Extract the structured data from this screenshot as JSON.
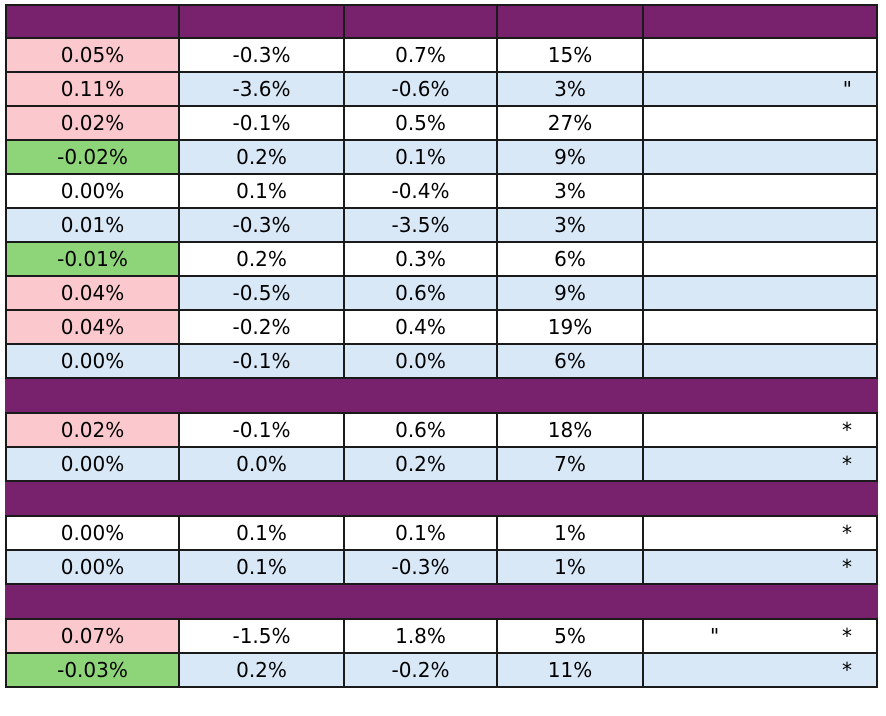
{
  "sheet": {
    "header": [
      "",
      "",
      "",
      "",
      ""
    ],
    "rows": [
      {
        "kind": "data",
        "shade": "white",
        "c0": "0.05%",
        "c0tone": "pos",
        "c1": "-0.3%",
        "c2": "0.7%",
        "c3": "15%",
        "c4q": "",
        "c4s": ""
      },
      {
        "kind": "data",
        "shade": "blue",
        "c0": "0.11%",
        "c0tone": "pos",
        "c1": "-3.6%",
        "c2": "-0.6%",
        "c3": "3%",
        "c4q": "",
        "c4s": "\""
      },
      {
        "kind": "data",
        "shade": "white",
        "c0": "0.02%",
        "c0tone": "pos",
        "c1": "-0.1%",
        "c2": "0.5%",
        "c3": "27%",
        "c4q": "",
        "c4s": ""
      },
      {
        "kind": "data",
        "shade": "blue",
        "c0": "-0.02%",
        "c0tone": "neg",
        "c1": "0.2%",
        "c2": "0.1%",
        "c3": "9%",
        "c4q": "",
        "c4s": ""
      },
      {
        "kind": "data",
        "shade": "white",
        "c0": "0.00%",
        "c0tone": "neu",
        "c1": "0.1%",
        "c2": "-0.4%",
        "c3": "3%",
        "c4q": "",
        "c4s": ""
      },
      {
        "kind": "data",
        "shade": "blue",
        "c0": "0.01%",
        "c0tone": "neu",
        "c1": "-0.3%",
        "c2": "-3.5%",
        "c3": "3%",
        "c4q": "",
        "c4s": ""
      },
      {
        "kind": "data",
        "shade": "white",
        "c0": "-0.01%",
        "c0tone": "neg",
        "c1": "0.2%",
        "c2": "0.3%",
        "c3": "6%",
        "c4q": "",
        "c4s": ""
      },
      {
        "kind": "data",
        "shade": "blue",
        "c0": "0.04%",
        "c0tone": "pos",
        "c1": "-0.5%",
        "c2": "0.6%",
        "c3": "9%",
        "c4q": "",
        "c4s": ""
      },
      {
        "kind": "data",
        "shade": "white",
        "c0": "0.04%",
        "c0tone": "pos",
        "c1": "-0.2%",
        "c2": "0.4%",
        "c3": "19%",
        "c4q": "",
        "c4s": ""
      },
      {
        "kind": "data",
        "shade": "blue",
        "c0": "0.00%",
        "c0tone": "neu",
        "c1": "-0.1%",
        "c2": "0.0%",
        "c3": "6%",
        "c4q": "",
        "c4s": ""
      },
      {
        "kind": "band"
      },
      {
        "kind": "data",
        "shade": "white",
        "c0": "0.02%",
        "c0tone": "pos",
        "c1": "-0.1%",
        "c2": "0.6%",
        "c3": "18%",
        "c4q": "",
        "c4s": "*"
      },
      {
        "kind": "data",
        "shade": "blue",
        "c0": "0.00%",
        "c0tone": "neu",
        "c1": "0.0%",
        "c2": "0.2%",
        "c3": "7%",
        "c4q": "",
        "c4s": "*"
      },
      {
        "kind": "band"
      },
      {
        "kind": "data",
        "shade": "white",
        "c0": "0.00%",
        "c0tone": "neu",
        "c1": "0.1%",
        "c2": "0.1%",
        "c3": "1%",
        "c4q": "",
        "c4s": "*"
      },
      {
        "kind": "data",
        "shade": "blue",
        "c0": "0.00%",
        "c0tone": "neu",
        "c1": "0.1%",
        "c2": "-0.3%",
        "c3": "1%",
        "c4q": "",
        "c4s": "*"
      },
      {
        "kind": "band"
      },
      {
        "kind": "data",
        "shade": "white",
        "c0": "0.07%",
        "c0tone": "pos",
        "c1": "-1.5%",
        "c2": "1.8%",
        "c3": "5%",
        "c4q": "\"",
        "c4s": "*"
      },
      {
        "kind": "data",
        "shade": "blue",
        "c0": "-0.03%",
        "c0tone": "neg",
        "c1": "0.2%",
        "c2": "-0.2%",
        "c3": "11%",
        "c4q": "",
        "c4s": "*"
      }
    ]
  },
  "colors": {
    "header_band": "#78226e",
    "row_blue": "#d9e8f7",
    "row_white": "#ffffff",
    "positive_cell": "#fbc9cd",
    "negative_cell": "#8ed57a",
    "grid_border": "#1a1a1a"
  }
}
